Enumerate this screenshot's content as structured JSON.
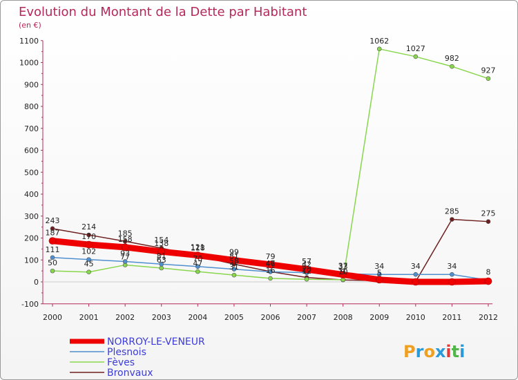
{
  "chart_data": {
    "type": "line",
    "title": "Evolution du Montant de la Dette par Habitant",
    "subtitle": "(en €)",
    "xlabel": "",
    "ylabel": "",
    "ylim": [
      -100,
      1100
    ],
    "yticks": [
      -100,
      0,
      100,
      200,
      300,
      400,
      500,
      600,
      700,
      800,
      900,
      1000,
      1100
    ],
    "categories": [
      "2000",
      "2001",
      "2002",
      "2003",
      "2004",
      "2005",
      "2006",
      "2007",
      "2008",
      "2009",
      "2010",
      "2011",
      "2012"
    ],
    "series": [
      {
        "name": "NORROY-LE-VENEUR",
        "color": "#ee0000",
        "values": [
          187,
          170,
          158,
          138,
          121,
          99,
          79,
          57,
          33,
          10,
          0,
          0,
          3
        ],
        "labels": [
          "187",
          "170",
          "158",
          "138",
          "121",
          "99",
          "79",
          "57",
          "33",
          "",
          "",
          "",
          ""
        ]
      },
      {
        "name": "Plesnois",
        "color": "#4f8fcf",
        "values": [
          111,
          102,
          93,
          81,
          70,
          58,
          46,
          42,
          37,
          34,
          34,
          34,
          8
        ],
        "labels": [
          "111",
          "102",
          "93",
          "81",
          "70",
          "58",
          "46",
          "42",
          "37",
          "34",
          "34",
          "34",
          "8"
        ]
      },
      {
        "name": "Fèves",
        "color": "#88d64c",
        "values": [
          50,
          45,
          77,
          63,
          47,
          31,
          16,
          12,
          10,
          1062,
          1027,
          982,
          927
        ],
        "labels": [
          "50",
          "45",
          "77",
          "63",
          "47",
          "31",
          "16",
          "12",
          "10",
          "1062",
          "1027",
          "982",
          "927"
        ]
      },
      {
        "name": "Bronvaux",
        "color": "#6e1e1e",
        "values": [
          243,
          214,
          185,
          154,
          118,
          81,
          47,
          20,
          9,
          5,
          1,
          285,
          275
        ],
        "labels": [
          "243",
          "214",
          "185",
          "154",
          "118",
          "81",
          "47",
          "20",
          "9",
          "5",
          "",
          "285",
          "275"
        ]
      }
    ]
  },
  "logo": {
    "letters": [
      "P",
      "r",
      "o",
      "x",
      "i",
      "t",
      "i"
    ],
    "colors": [
      "#f0a020",
      "#2a9ad8",
      "#f0a020",
      "#2a9ad8",
      "#e03c3c",
      "#50b848",
      "#2a9ad8"
    ]
  }
}
